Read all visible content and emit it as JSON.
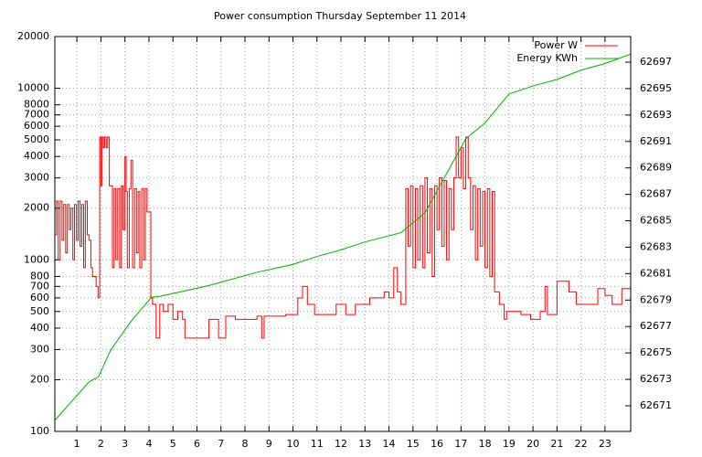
{
  "chart_data": {
    "type": "line",
    "title": "Power consumption Thursday September 11 2014",
    "xlim": [
      0.08,
      24.07
    ],
    "xticks": [
      1,
      2,
      3,
      4,
      5,
      6,
      7,
      8,
      9,
      10,
      11,
      12,
      13,
      14,
      15,
      16,
      17,
      18,
      19,
      20,
      21,
      22,
      23
    ],
    "ylim": [
      100,
      20000
    ],
    "log_y": true,
    "yticks": [
      100,
      200,
      300,
      400,
      500,
      600,
      700,
      800,
      1000,
      2000,
      3000,
      4000,
      5000,
      6000,
      7000,
      8000,
      10000,
      20000
    ],
    "y2lim": [
      62669.06,
      62698.94
    ],
    "y2ticks": [
      62671,
      62673,
      62675,
      62677,
      62679,
      62681,
      62683,
      62685,
      62687,
      62689,
      62691,
      62693,
      62695,
      62697
    ],
    "grid": true,
    "legend": "top-right",
    "series": [
      {
        "name": "Power W",
        "color": "#ff0000",
        "step": true,
        "x": [
          0.08,
          0.15,
          0.22,
          0.3,
          0.38,
          0.45,
          0.53,
          0.6,
          0.68,
          0.75,
          0.83,
          0.9,
          0.98,
          1.05,
          1.13,
          1.2,
          1.28,
          1.35,
          1.43,
          1.5,
          1.58,
          1.65,
          1.72,
          1.8,
          1.88,
          1.95,
          2.0,
          2.05,
          2.1,
          2.15,
          2.22,
          2.28,
          2.35,
          2.42,
          2.48,
          2.55,
          2.62,
          2.7,
          2.78,
          2.85,
          2.92,
          3.0,
          3.05,
          3.1,
          3.18,
          3.25,
          3.32,
          3.4,
          3.48,
          3.55,
          3.62,
          3.7,
          3.78,
          3.85,
          3.92,
          4.0,
          4.08,
          4.15,
          4.3,
          4.45,
          4.6,
          4.8,
          5.0,
          5.2,
          5.4,
          5.5,
          6.5,
          6.9,
          7.2,
          7.6,
          8.5,
          8.7,
          8.8,
          9.7,
          10.2,
          10.4,
          10.6,
          10.9,
          11.3,
          11.8,
          12.2,
          12.6,
          13.2,
          13.8,
          14.0,
          14.2,
          14.35,
          14.5,
          14.7,
          14.8,
          14.9,
          15.0,
          15.1,
          15.2,
          15.3,
          15.4,
          15.5,
          15.6,
          15.7,
          15.8,
          15.9,
          16.0,
          16.1,
          16.2,
          16.3,
          16.4,
          16.5,
          16.6,
          16.7,
          16.8,
          16.9,
          17.0,
          17.1,
          17.2,
          17.3,
          17.4,
          17.5,
          17.6,
          17.7,
          17.8,
          17.9,
          18.0,
          18.1,
          18.2,
          18.3,
          18.4,
          18.6,
          18.8,
          18.9,
          19.5,
          19.9,
          20.3,
          20.5,
          20.6,
          21.0,
          21.5,
          21.8,
          22.7,
          23.0,
          23.3,
          23.7,
          24.05
        ],
        "values": [
          1400,
          2200,
          1000,
          2200,
          1300,
          2100,
          1100,
          2100,
          1500,
          2000,
          1000,
          2100,
          1300,
          2200,
          1200,
          2100,
          900,
          2200,
          1400,
          1300,
          900,
          800,
          800,
          700,
          600,
          5200,
          2700,
          5200,
          4500,
          5200,
          4500,
          5200,
          2700,
          2700,
          900,
          2600,
          1000,
          2600,
          900,
          2700,
          1500,
          4000,
          2500,
          900,
          2600,
          3800,
          900,
          2600,
          1100,
          2500,
          900,
          2600,
          1000,
          2600,
          1900,
          1900,
          600,
          550,
          350,
          550,
          500,
          550,
          450,
          500,
          450,
          350,
          450,
          350,
          470,
          450,
          470,
          350,
          470,
          480,
          600,
          700,
          550,
          480,
          480,
          550,
          480,
          550,
          600,
          650,
          600,
          900,
          650,
          550,
          2600,
          1200,
          2700,
          900,
          2600,
          1000,
          2700,
          900,
          3000,
          1100,
          2600,
          800,
          2700,
          1500,
          3000,
          1200,
          2900,
          1000,
          2600,
          1500,
          3000,
          5200,
          3000,
          4500,
          2600,
          5200,
          3000,
          1500,
          2700,
          1000,
          2600,
          1200,
          2500,
          900,
          2600,
          800,
          2500,
          650,
          550,
          450,
          500,
          480,
          450,
          500,
          700,
          480,
          750,
          650,
          550,
          680,
          620,
          550,
          680,
          680
        ]
      },
      {
        "name": "Energy KWh",
        "color": "#00b000",
        "axis": "y2",
        "x": [
          0.08,
          1.5,
          1.9,
          2.4,
          3.3,
          4.1,
          4.5,
          6.5,
          8.5,
          10,
          11,
          12,
          13,
          14.5,
          15.5,
          16.5,
          17.2,
          18,
          19,
          20,
          21,
          22,
          23,
          24.05
        ],
        "values": [
          62669.9,
          62672.8,
          62673.2,
          62675.2,
          62677.5,
          62679.2,
          62679.3,
          62680.1,
          62681.1,
          62681.7,
          62682.3,
          62682.8,
          62683.4,
          62684.1,
          62685.6,
          62688.9,
          62691.2,
          62692.4,
          62694.6,
          62695.2,
          62695.7,
          62696.4,
          62696.9,
          62697.6
        ]
      }
    ]
  }
}
